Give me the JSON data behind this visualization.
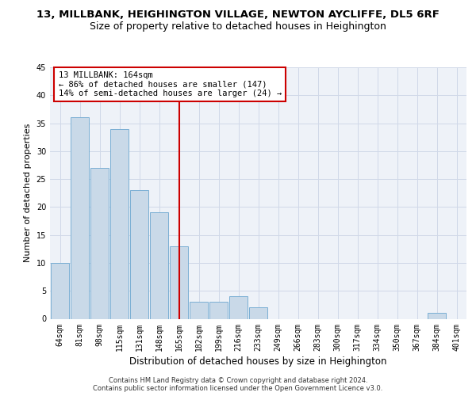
{
  "title_line1": "13, MILLBANK, HEIGHINGTON VILLAGE, NEWTON AYCLIFFE, DL5 6RF",
  "title_line2": "Size of property relative to detached houses in Heighington",
  "xlabel": "Distribution of detached houses by size in Heighington",
  "ylabel": "Number of detached properties",
  "categories": [
    "64sqm",
    "81sqm",
    "98sqm",
    "115sqm",
    "131sqm",
    "148sqm",
    "165sqm",
    "182sqm",
    "199sqm",
    "216sqm",
    "233sqm",
    "249sqm",
    "266sqm",
    "283sqm",
    "300sqm",
    "317sqm",
    "334sqm",
    "350sqm",
    "367sqm",
    "384sqm",
    "401sqm"
  ],
  "values": [
    10,
    36,
    27,
    34,
    23,
    19,
    13,
    3,
    3,
    4,
    2,
    0,
    0,
    0,
    0,
    0,
    0,
    0,
    0,
    1,
    0
  ],
  "bar_color": "#c9d9e8",
  "bar_edge_color": "#7bafd4",
  "vline_color": "#cc0000",
  "vline_index": 6,
  "annotation_text": "13 MILLBANK: 164sqm\n← 86% of detached houses are smaller (147)\n14% of semi-detached houses are larger (24) →",
  "annotation_box_color": "#ffffff",
  "annotation_box_edge": "#cc0000",
  "footer": "Contains HM Land Registry data © Crown copyright and database right 2024.\nContains public sector information licensed under the Open Government Licence v3.0.",
  "ylim": [
    0,
    45
  ],
  "yticks": [
    0,
    5,
    10,
    15,
    20,
    25,
    30,
    35,
    40,
    45
  ],
  "grid_color": "#d0d8e8",
  "bg_color": "#eef2f8",
  "title_fontsize": 9.5,
  "subtitle_fontsize": 9,
  "tick_fontsize": 7,
  "ylabel_fontsize": 8,
  "xlabel_fontsize": 8.5,
  "ann_fontsize": 7.5,
  "footer_fontsize": 6
}
